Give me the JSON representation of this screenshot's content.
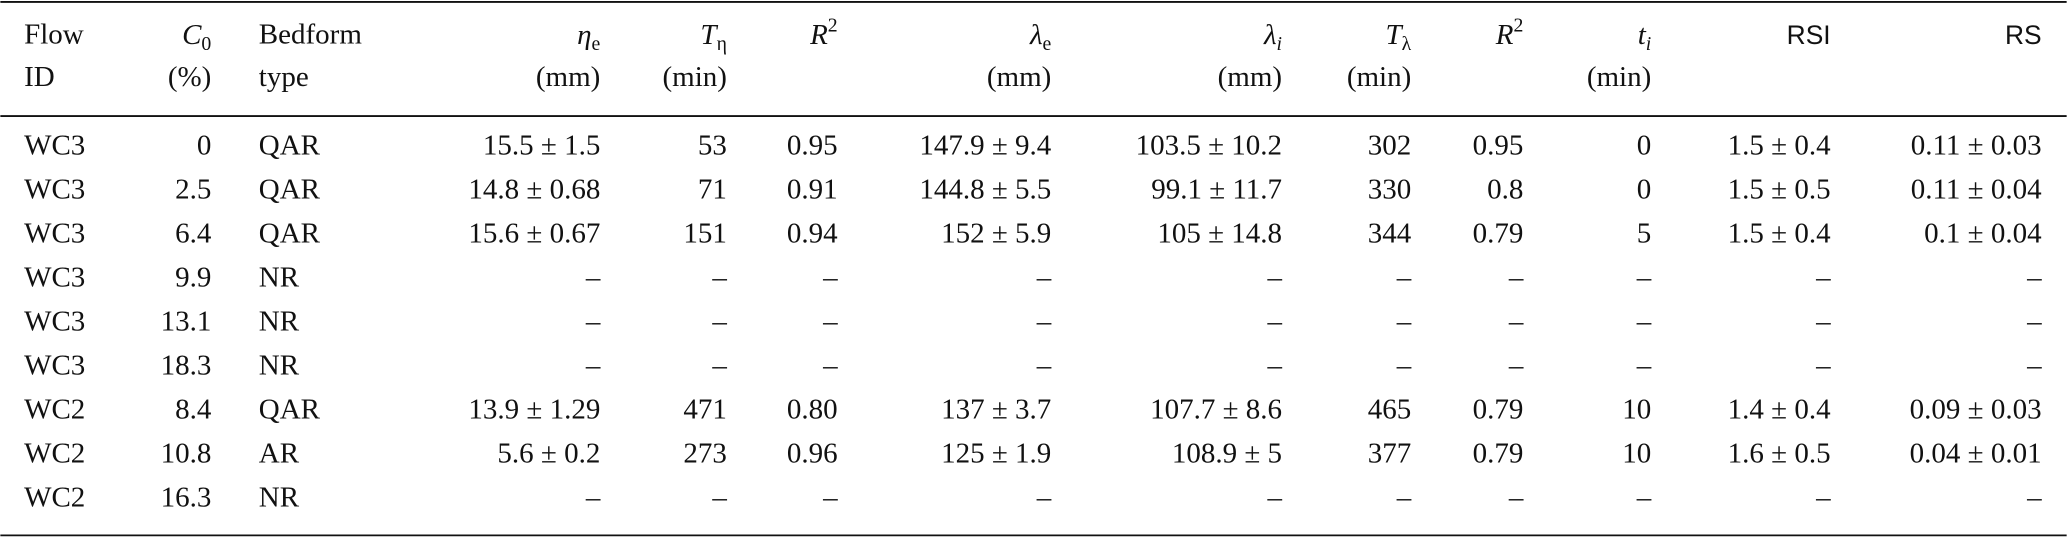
{
  "table": {
    "header": [
      {
        "lines": [
          "Flow",
          "ID"
        ]
      },
      {
        "sym": "C",
        "sub": "0",
        "unit": "(%)"
      },
      {
        "lines": [
          "Bedform",
          "type"
        ]
      },
      {
        "sym": "η",
        "sub": "e",
        "unit": "(mm)"
      },
      {
        "sym": "T",
        "sub": "η",
        "unit": "(min)"
      },
      {
        "sym": "R",
        "sup": "2"
      },
      {
        "sym": "λ",
        "sub": "e",
        "unit": "(mm)"
      },
      {
        "sym": "λ",
        "sub": "i",
        "unit": "(mm)"
      },
      {
        "sym": "T",
        "sub": "λ",
        "unit": "(min)"
      },
      {
        "sym": "R",
        "sup": "2"
      },
      {
        "sym": "t",
        "sub": "i",
        "unit": "(min)"
      },
      {
        "lines": [
          "RSI"
        ]
      },
      {
        "lines": [
          "RS"
        ]
      }
    ],
    "rows": [
      [
        "WC3",
        "0",
        "QAR",
        "15.5 ± 1.5",
        "53",
        "0.95",
        "147.9 ± 9.4",
        "103.5 ± 10.2",
        "302",
        "0.95",
        "0",
        "1.5 ± 0.4",
        "0.11 ± 0.03"
      ],
      [
        "WC3",
        "2.5",
        "QAR",
        "14.8 ± 0.68",
        "71",
        "0.91",
        "144.8 ± 5.5",
        "99.1 ± 11.7",
        "330",
        "0.8",
        "0",
        "1.5 ± 0.5",
        "0.11 ± 0.04"
      ],
      [
        "WC3",
        "6.4",
        "QAR",
        "15.6 ± 0.67",
        "151",
        "0.94",
        "152 ± 5.9",
        "105 ± 14.8",
        "344",
        "0.79",
        "5",
        "1.5 ± 0.4",
        "0.1 ± 0.04"
      ],
      [
        "WC3",
        "9.9",
        "NR",
        "–",
        "–",
        "–",
        "–",
        "–",
        "–",
        "–",
        "–",
        "–",
        "–"
      ],
      [
        "WC3",
        "13.1",
        "NR",
        "–",
        "–",
        "–",
        "–",
        "–",
        "–",
        "–",
        "–",
        "–",
        "–"
      ],
      [
        "WC3",
        "18.3",
        "NR",
        "–",
        "–",
        "–",
        "–",
        "–",
        "–",
        "–",
        "–",
        "–",
        "–"
      ],
      [
        "WC2",
        "8.4",
        "QAR",
        "13.9 ± 1.29",
        "471",
        "0.80",
        "137 ± 3.7",
        "107.7 ± 8.6",
        "465",
        "0.79",
        "10",
        "1.4 ± 0.4",
        "0.09 ± 0.03"
      ],
      [
        "WC2",
        "10.8",
        "AR",
        "5.6 ± 0.2",
        "273",
        "0.96",
        "125 ± 1.9",
        "108.9 ± 5",
        "377",
        "0.79",
        "10",
        "1.6 ± 0.5",
        "0.04 ± 0.01"
      ],
      [
        "WC2",
        "16.3",
        "NR",
        "–",
        "–",
        "–",
        "–",
        "–",
        "–",
        "–",
        "–",
        "–",
        "–"
      ]
    ]
  }
}
